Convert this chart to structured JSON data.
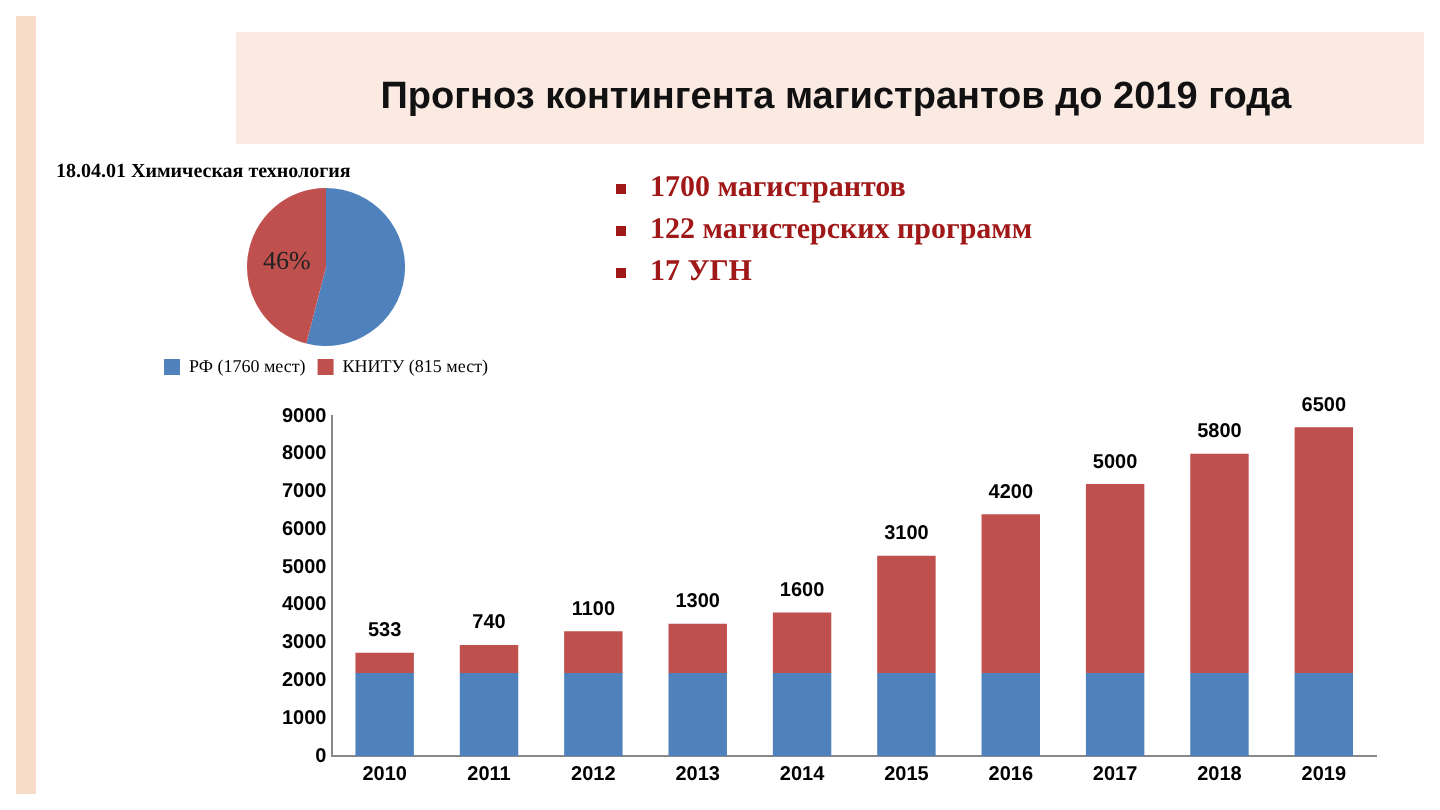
{
  "chart_data": [
    {
      "type": "pie",
      "title": "18.04.01 Химическая технология",
      "categories": [
        "РФ (1760 мест)",
        "КНИТУ (815 мест)"
      ],
      "values": [
        54,
        46
      ],
      "colors": [
        "#4f81bd",
        "#c0504d"
      ],
      "value_labels": [
        null,
        "46%"
      ],
      "legend": "bottom"
    },
    {
      "type": "bar",
      "title": "Прогноз контингента магистрантов до 2019 года",
      "annotations": [
        "1700 магистрантов",
        "122 магистерских программ",
        "17 УГН"
      ],
      "categories": [
        "2010",
        "2011",
        "2012",
        "2013",
        "2014",
        "2015",
        "2016",
        "2017",
        "2018",
        "2019"
      ],
      "stacked": true,
      "series": [
        {
          "color": "#4f81bd",
          "values": [
            2200,
            2200,
            2200,
            2200,
            2200,
            2200,
            2200,
            2200,
            2200,
            2200
          ]
        },
        {
          "color": "#c0504d",
          "values": [
            533,
            740,
            1100,
            1300,
            1600,
            3100,
            4200,
            5000,
            5800,
            6500
          ],
          "value_labels": [
            "533",
            "740",
            "1100",
            "1300",
            "1600",
            "3100",
            "4200",
            "5000",
            "5800",
            "6500"
          ]
        }
      ],
      "ylim": [
        0,
        9000
      ],
      "yticks": [
        0,
        1000,
        2000,
        3000,
        4000,
        5000,
        6000,
        7000,
        8000,
        9000
      ],
      "grid": false,
      "legend": false
    }
  ]
}
